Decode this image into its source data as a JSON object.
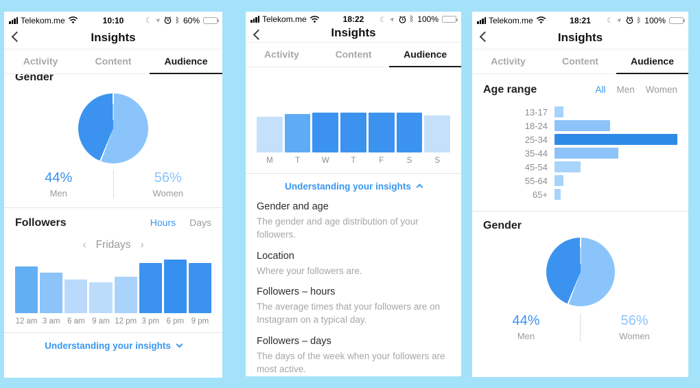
{
  "colors": {
    "background": "#a3e2f8",
    "accent_blue": "#3897f0",
    "pie_dark_blue": "#3b93ef",
    "pie_light_blue": "#8ac4fa",
    "inactive_gray": "#a8a8a8",
    "label_gray": "#8e8e8e"
  },
  "phones": [
    {
      "status": {
        "carrier": "Telekom.me",
        "time": "10:10",
        "battery_pct": "60%"
      },
      "nav": {
        "title": "Insights"
      },
      "tabs": [
        {
          "label": "Activity"
        },
        {
          "label": "Content"
        },
        {
          "label": "Audience"
        }
      ],
      "gender_heading": "Gender",
      "gender_legend": {
        "men_pct": "44%",
        "men_label": "Men",
        "women_pct": "56%",
        "women_label": "Women"
      },
      "followers": {
        "heading": "Followers",
        "toggle_hours": "Hours",
        "toggle_days": "Days",
        "day_prev": "‹",
        "day_selected": "Fridays",
        "day_next": "›"
      },
      "insights_link": "Understanding your insights"
    },
    {
      "status": {
        "carrier": "Telekom.me",
        "time": "18:22",
        "battery_pct": "100%"
      },
      "nav": {
        "title": "Insights"
      },
      "tabs": [
        {
          "label": "Activity"
        },
        {
          "label": "Content"
        },
        {
          "label": "Audience"
        }
      ],
      "insights_link": "Understanding your insights",
      "sections": [
        {
          "title": "Gender and age",
          "body": "The gender and age distribution of your followers."
        },
        {
          "title": "Location",
          "body": "Where your followers are."
        },
        {
          "title": "Followers – hours",
          "body": "The average times that your followers are on Instagram on a typical day."
        },
        {
          "title": "Followers – days",
          "body": "The days of the week when your followers are most active."
        }
      ]
    },
    {
      "status": {
        "carrier": "Telekom.me",
        "time": "18:21",
        "battery_pct": "100%"
      },
      "nav": {
        "title": "Insights"
      },
      "tabs": [
        {
          "label": "Activity"
        },
        {
          "label": "Content"
        },
        {
          "label": "Audience"
        }
      ],
      "age_heading": "Age range",
      "filters": {
        "all": "All",
        "men": "Men",
        "women": "Women",
        "selected": "All"
      },
      "gender_heading": "Gender",
      "gender_legend": {
        "men_pct": "44%",
        "men_label": "Men",
        "women_pct": "56%",
        "women_label": "Women"
      }
    }
  ],
  "chart_data": [
    {
      "id": "gender-pie-left",
      "type": "pie",
      "title": "Gender",
      "slices": [
        {
          "label": "Women",
          "value": 56,
          "color": "#8ac4fa"
        },
        {
          "label": "Men",
          "value": 44,
          "color": "#3b93ef"
        }
      ],
      "start": "12-oclock-clockwise"
    },
    {
      "id": "followers-hours-fridays",
      "type": "bar",
      "title": "Followers — Hours (Fridays)",
      "categories": [
        "12 am",
        "3 am",
        "6 am",
        "9 am",
        "12 pm",
        "3 pm",
        "6 pm",
        "9 pm"
      ],
      "values": [
        87,
        76,
        63,
        58,
        68,
        93,
        100,
        93
      ],
      "unit": "percent-of-max",
      "colors": [
        "#64aef4",
        "#8cc3f8",
        "#b9dafb",
        "#bcdcfb",
        "#a9d3fa",
        "#3b93ef",
        "#3690ef",
        "#3b93ef"
      ],
      "xlabel": "time of day",
      "grid": false,
      "legend": "none"
    },
    {
      "id": "followers-days",
      "type": "bar",
      "title": "Followers — Days",
      "categories": [
        "M",
        "T",
        "W",
        "T",
        "F",
        "S",
        "S"
      ],
      "values": [
        91,
        97,
        100,
        100,
        100,
        100,
        93
      ],
      "unit": "percent-of-max",
      "colors": [
        "#c5e0fb",
        "#5fabf5",
        "#3b93ef",
        "#3b93ef",
        "#3b93ef",
        "#3b93ef",
        "#c5e0fb"
      ],
      "xlabel": "day of week",
      "grid": false,
      "legend": "none"
    },
    {
      "id": "age-range",
      "type": "bar",
      "orientation": "horizontal",
      "title": "Age range (All)",
      "categories": [
        "13-17",
        "18-24",
        "25-34",
        "35-44",
        "45-54",
        "55-64",
        "65+"
      ],
      "values": [
        7,
        45,
        100,
        52,
        21,
        7,
        5
      ],
      "unit": "percent-of-max",
      "colors": [
        "#a8d3fa",
        "#8cc3f8",
        "#2e8ae6",
        "#8cc3f8",
        "#a8d3fa",
        "#a8d3fa",
        "#a8d3fa"
      ],
      "grid": false,
      "legend": "none"
    },
    {
      "id": "gender-pie-right",
      "type": "pie",
      "title": "Gender",
      "slices": [
        {
          "label": "Women",
          "value": 56,
          "color": "#8ac4fa"
        },
        {
          "label": "Men",
          "value": 44,
          "color": "#3b93ef"
        }
      ],
      "start": "12-oclock-clockwise"
    }
  ]
}
